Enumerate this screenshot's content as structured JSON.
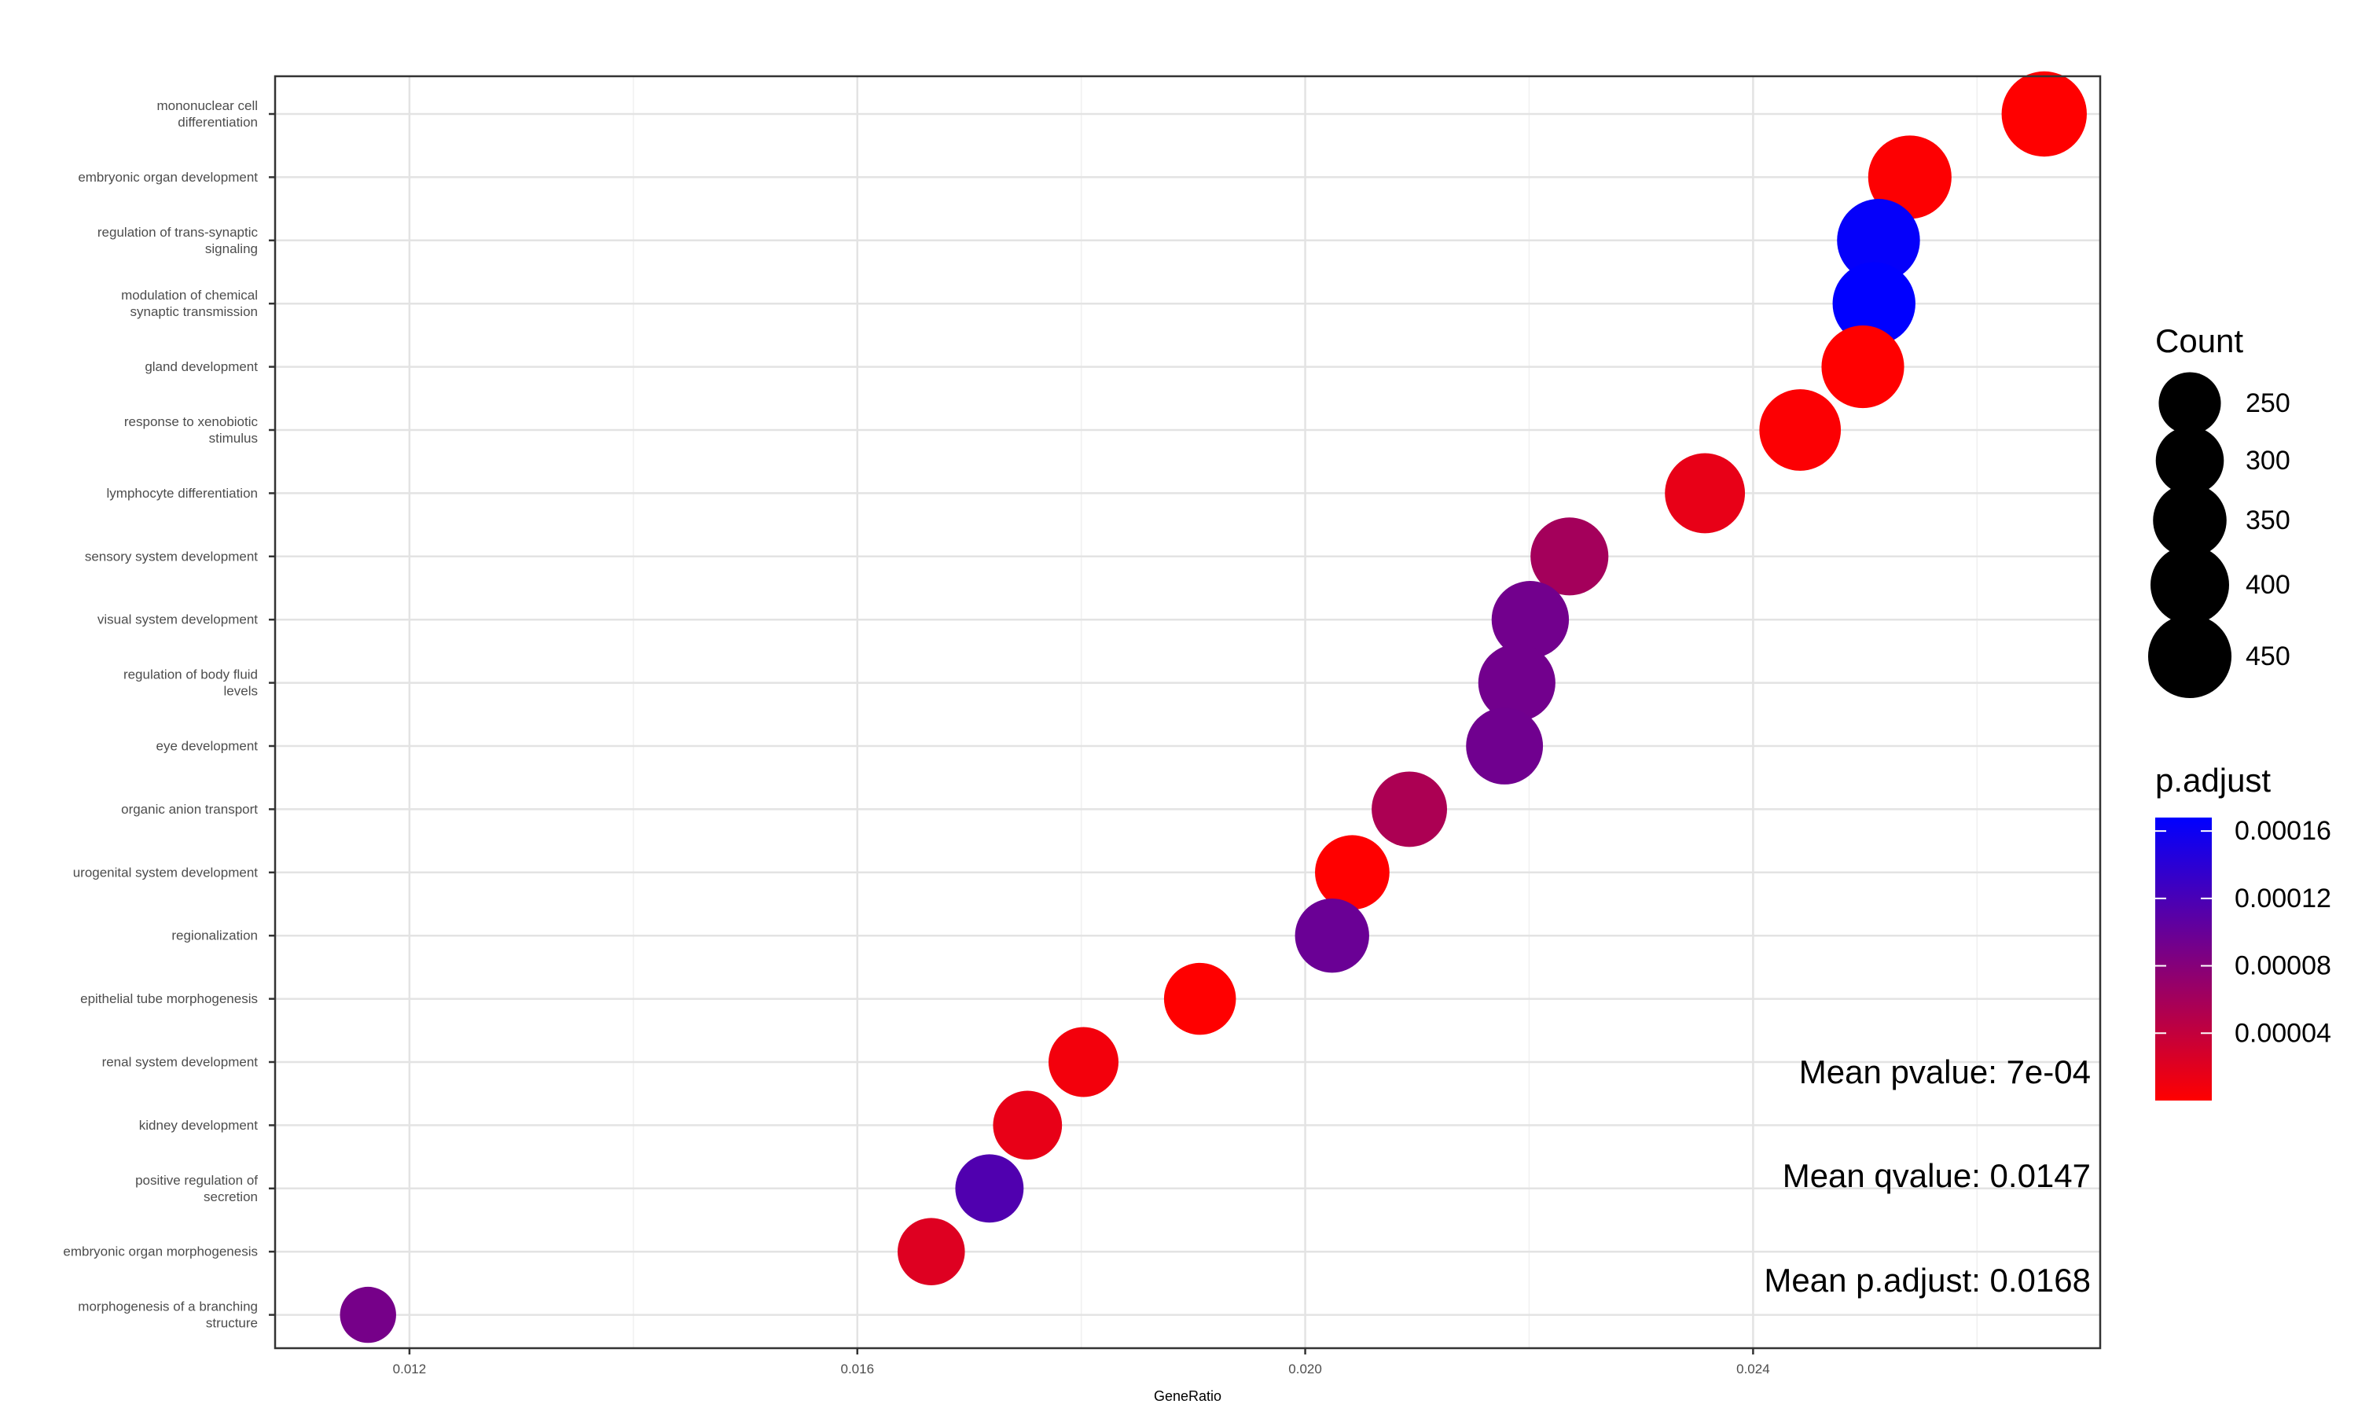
{
  "chart_data": {
    "type": "scatter",
    "xlabel": "GeneRatio",
    "ylabel": "",
    "title": "",
    "xlim": [
      0.0108,
      0.0271
    ],
    "x_ticks": [
      "0.012",
      "0.016",
      "0.020",
      "0.024"
    ],
    "grid": true,
    "categories": [
      "mononuclear cell differentiation",
      "embryonic organ development",
      "regulation of trans-synaptic signaling",
      "modulation of chemical synaptic transmission",
      "gland development",
      "response to xenobiotic stimulus",
      "lymphocyte differentiation",
      "sensory system development",
      "visual system development",
      "regulation of body fluid levels",
      "eye development",
      "organic anion transport",
      "urogenital system development",
      "regionalization",
      "epithelial tube morphogenesis",
      "renal system development",
      "kidney development",
      "positive regulation of secretion",
      "embryonic organ morphogenesis",
      "morphogenesis of a branching structure"
    ],
    "category_labels": [
      [
        "mononuclear cell",
        "differentiation"
      ],
      [
        "embryonic organ development"
      ],
      [
        "regulation of trans-synaptic",
        "signaling"
      ],
      [
        "modulation of chemical",
        "synaptic transmission"
      ],
      [
        "gland development"
      ],
      [
        "response to xenobiotic",
        "stimulus"
      ],
      [
        "lymphocyte differentiation"
      ],
      [
        "sensory system development"
      ],
      [
        "visual system development"
      ],
      [
        "regulation of body fluid",
        "levels"
      ],
      [
        "eye development"
      ],
      [
        "organic anion transport"
      ],
      [
        "urogenital system development"
      ],
      [
        "regionalization"
      ],
      [
        "epithelial tube morphogenesis"
      ],
      [
        "renal system development"
      ],
      [
        "kidney development"
      ],
      [
        "positive regulation of",
        "secretion"
      ],
      [
        "embryonic organ morphogenesis"
      ],
      [
        "morphogenesis of a branching",
        "structure"
      ]
    ],
    "gene_ratio": [
      0.0266,
      0.0254,
      0.02512,
      0.02508,
      0.02498,
      0.02442,
      0.02357,
      0.02236,
      0.02201,
      0.02189,
      0.02178,
      0.02093,
      0.02042,
      0.02024,
      0.01906,
      0.01802,
      0.01752,
      0.01718,
      0.01666,
      0.01163
    ],
    "count": [
      470,
      450,
      445,
      444,
      442,
      430,
      415,
      393,
      387,
      385,
      383,
      368,
      359,
      356,
      335,
      317,
      308,
      302,
      293,
      204
    ],
    "p_adjust": [
      1e-07,
      1e-06,
      0.000165,
      0.000168,
      1e-07,
      2e-06,
      1.5e-05,
      6e-05,
      9.3e-05,
      9.3e-05,
      9.4e-05,
      5.5e-05,
      1e-07,
      9.8e-05,
      1e-07,
      8e-06,
      1.5e-05,
      0.000115,
      2.2e-05,
      9e-05
    ],
    "legend_count": {
      "title": "Count",
      "values": [
        250,
        300,
        350,
        400,
        450
      ],
      "labels": [
        "250",
        "300",
        "350",
        "400",
        "450"
      ]
    },
    "legend_padjust": {
      "title": "p.adjust",
      "range": [
        0.0,
        0.000168
      ],
      "ticks": [
        0.00016,
        0.00012,
        8e-05,
        4e-05
      ],
      "tick_labels": [
        "0.00016",
        "0.00012",
        "0.00008",
        "0.00004"
      ],
      "color_low": "#FF0000",
      "color_high": "#0000FF"
    },
    "annotations": [
      "Mean pvalue: 7e-04",
      "Mean qvalue: 0.0147",
      "Mean p.adjust: 0.0168"
    ]
  }
}
